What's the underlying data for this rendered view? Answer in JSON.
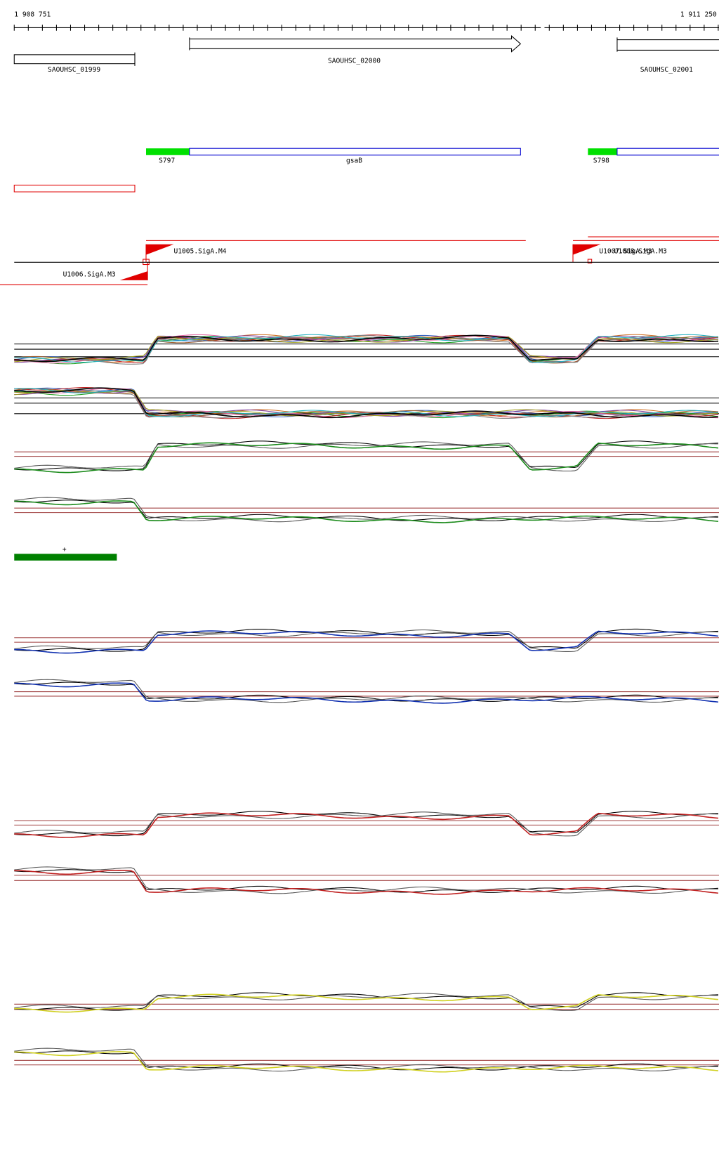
{
  "ruler": {
    "start": "1 908 751",
    "end": "1 911 250"
  },
  "genes": [
    "SAOUHSC_01999",
    "SAOUHSC_02000",
    "SAOUHSC_02001"
  ],
  "features": [
    "S797",
    "gsaB",
    "S798"
  ],
  "promoters": [
    "U1005.SigA.M4",
    "U1006.SigA.M3",
    "U1007.SigA.M3",
    "U1008.SigA.M3"
  ],
  "strand_label": "+"
}
